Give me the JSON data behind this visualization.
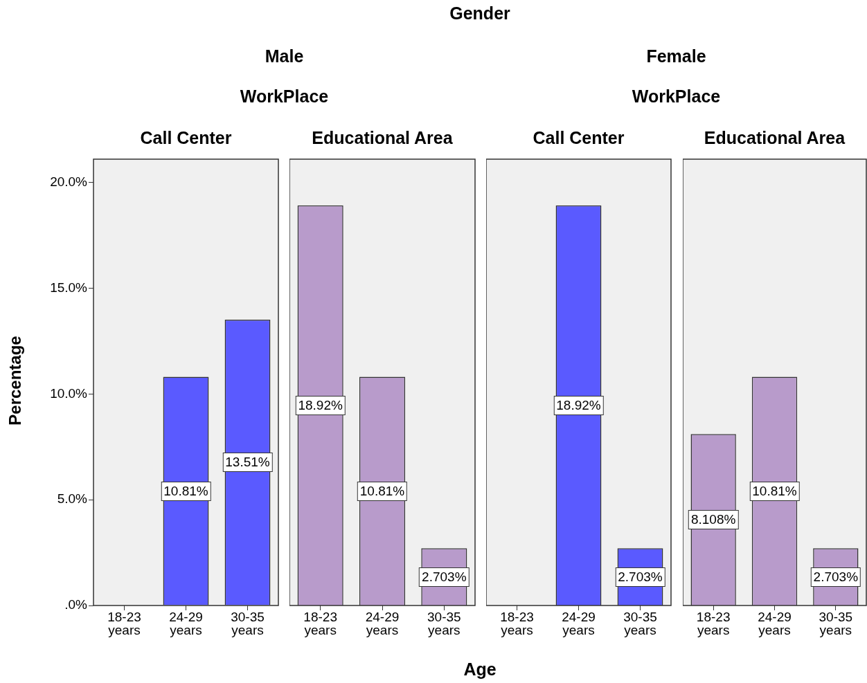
{
  "chart_data": [
    {
      "type": "bar",
      "title": "Call Center",
      "annotations": [
        "Gender",
        "Male",
        "WorkPlace",
        "Age"
      ],
      "ylabel": "Percentage",
      "categories": [
        "18-23 years",
        "24-29 years",
        "30-35 years"
      ],
      "values": [
        null,
        10.81,
        13.51
      ],
      "value_labels": [
        null,
        "10.81%",
        "13.51%"
      ],
      "color": "#5a5aff",
      "ylim": [
        0,
        21.1
      ],
      "yticks": [
        {
          "value": 0,
          "label": ".0%"
        },
        {
          "value": 5,
          "label": "5.0%"
        },
        {
          "value": 10,
          "label": "10.0%"
        },
        {
          "value": 15,
          "label": "15.0%"
        },
        {
          "value": 20,
          "label": "20.0%"
        }
      ],
      "grid": false,
      "legend": false
    },
    {
      "type": "bar",
      "title": "Educational Area",
      "categories": [
        "18-23 years",
        "24-29 years",
        "30-35 years"
      ],
      "values": [
        18.92,
        10.81,
        2.703
      ],
      "value_labels": [
        "18.92%",
        "10.81%",
        "2.703%"
      ],
      "color": "#b89bcb",
      "ylim": [
        0,
        21.1
      ],
      "tick_labels": "x",
      "grid": false,
      "legend": false
    },
    {
      "type": "bar",
      "title": "Call Center",
      "annotations": [
        "Female",
        "WorkPlace"
      ],
      "categories": [
        "18-23 years",
        "24-29 years",
        "30-35 years"
      ],
      "values": [
        null,
        18.92,
        2.703
      ],
      "value_labels": [
        null,
        "18.92%",
        "2.703%"
      ],
      "color": "#5a5aff",
      "ylim": [
        0,
        21.1
      ],
      "tick_labels": "x",
      "grid": false,
      "legend": false
    },
    {
      "type": "bar",
      "title": "Educational Area",
      "categories": [
        "18-23 years",
        "24-29 years",
        "30-35 years"
      ],
      "values": [
        8.108,
        10.81,
        2.703
      ],
      "value_labels": [
        "8.108%",
        "10.81%",
        "2.703%"
      ],
      "color": "#b89bcb",
      "ylim": [
        0,
        21.1
      ],
      "tick_labels": "x",
      "grid": false,
      "legend": false
    }
  ]
}
